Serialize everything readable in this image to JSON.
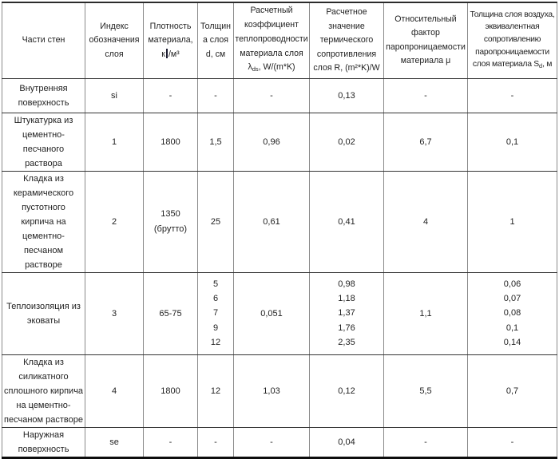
{
  "header": {
    "col1": "Части стен",
    "col2_lines": [
      "Индекс",
      "обозначения",
      "слоя"
    ],
    "col3_lines": [
      "Плотность",
      "материала,"
    ],
    "col3_unit_prefix": "к",
    "col3_unit_suffix": "/м³",
    "col4_lines": [
      "Толщин",
      "а слоя",
      "d, см"
    ],
    "col5_lines": [
      "Расчетный",
      "коэффициент",
      "теплопроводности",
      "материала слоя"
    ],
    "col5_symbol": "λ",
    "col5_symbol_sub": "ds",
    "col5_unit": ", W/(m*K)",
    "col6_lines": [
      "Расчетное",
      "значение",
      "термического",
      "сопротивления",
      "слоя R, (m²*K)/W"
    ],
    "col7_lines": [
      "Относительный",
      "фактор",
      "паропроницаемости",
      "материала μ"
    ],
    "col8_lines": [
      "Толщина слоя воздуха,",
      "эквивалентная",
      "сопротивлению",
      "паропроницаемости"
    ],
    "col8_symbol": "слоя материала S",
    "col8_symbol_sub": "d",
    "col8_unit": ", м"
  },
  "rows": [
    {
      "name_lines": [
        "Внутренняя",
        "поверхность"
      ],
      "index": "si",
      "density": "-",
      "thickness": "-",
      "lambda": "-",
      "resistance": "0,13",
      "mu": "-",
      "sd": "-"
    },
    {
      "name_lines": [
        "Штукатурка из",
        "цементно-песчаного",
        "раствора"
      ],
      "index": "1",
      "density": "1800",
      "thickness": "1,5",
      "lambda": "0,96",
      "resistance": "0,02",
      "mu": "6,7",
      "sd": "0,1"
    },
    {
      "name_lines": [
        "Кладка из",
        "керамического",
        "пустотного",
        "кирпича на",
        "цементно-песчаном",
        "растворе"
      ],
      "index": "2",
      "density_lines": [
        "1350",
        "(брутто)"
      ],
      "thickness": "25",
      "lambda": "0,61",
      "resistance": "0,41",
      "mu": "4",
      "sd": "1"
    },
    {
      "name_lines": [
        "Теплоизоляция из",
        "эковаты"
      ],
      "index": "3",
      "density": "65-75",
      "thickness_list": [
        "5",
        "6",
        "7",
        "9",
        "12"
      ],
      "lambda": "0,051",
      "resistance_list": [
        "0,98",
        "1,18",
        "1,37",
        "1,76",
        "2,35"
      ],
      "mu": "1,1",
      "sd_list": [
        "0,06",
        "0,07",
        "0,08",
        "0,1",
        "0,14"
      ]
    },
    {
      "name_lines": [
        "Кладка из",
        "силикатного",
        "сплошного кирпича",
        "на цементно-",
        "песчаном растворе"
      ],
      "index": "4",
      "density": "1800",
      "thickness": "12",
      "lambda": "1,03",
      "resistance": "0,12",
      "mu": "5,5",
      "sd": "0,7"
    },
    {
      "name_lines": [
        "Наружная",
        "поверхность"
      ],
      "index": "se",
      "density": "-",
      "thickness": "-",
      "lambda": "-",
      "resistance": "0,04",
      "mu": "-",
      "sd": "-"
    }
  ]
}
